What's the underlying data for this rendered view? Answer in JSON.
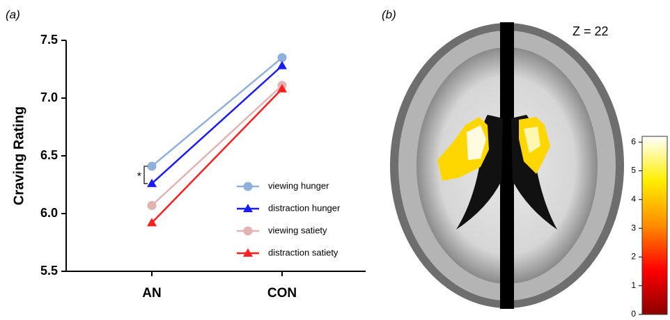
{
  "panel_labels": [
    "(a)",
    "(b)"
  ],
  "chart_data": {
    "type": "line",
    "y_label": "Craving  Rating",
    "categories": [
      "AN",
      "CON"
    ],
    "series": [
      {
        "name": "viewing hunger",
        "color": "#8fb0dc",
        "marker": "circle",
        "values": [
          6.41,
          7.35
        ]
      },
      {
        "name": "distraction hunger",
        "color": "#1a1aff",
        "marker": "triangle",
        "values": [
          6.26,
          7.28
        ]
      },
      {
        "name": "viewing satiety",
        "color": "#e3b3b3",
        "marker": "circle",
        "values": [
          6.07,
          7.11
        ]
      },
      {
        "name": "distraction satiety",
        "color": "#ff1f1f",
        "marker": "triangle",
        "values": [
          5.92,
          7.08
        ]
      }
    ],
    "ylim": [
      5.5,
      7.5
    ],
    "yticks": [
      5.5,
      {
        "value": 6,
        "label": "6.0"
      },
      6.5,
      {
        "value": 7,
        "label": "7.0"
      },
      7.5
    ],
    "annotation": "*"
  },
  "brain": {
    "slice_label": "Z =  22",
    "colorbar": {
      "ylim": [
        0,
        6.2
      ],
      "yticks": [
        0,
        1,
        2,
        3,
        4,
        5,
        6
      ]
    }
  }
}
